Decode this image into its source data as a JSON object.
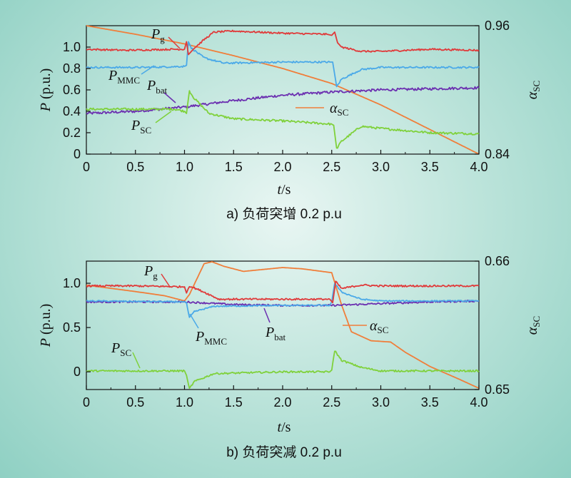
{
  "chart_data": [
    {
      "type": "line",
      "caption": "a) 负荷突增 0.2 p.u",
      "xlabel_main": "t",
      "xlabel_unit": "/s",
      "ylabel_main": "P",
      "ylabel_unit": " (p.u.)",
      "y2label_main": "α",
      "y2label_sub": "SC",
      "xlim": [
        0,
        4
      ],
      "ylim": [
        0,
        1.2
      ],
      "y2lim": [
        0.84,
        0.96
      ],
      "xticks": [
        "0",
        "0.5",
        "1.0",
        "1.5",
        "2.0",
        "2.5",
        "3.0",
        "3.5",
        "4.0"
      ],
      "yticks": [
        "0",
        "0.2",
        "0.4",
        "0.6",
        "0.8",
        "1.0"
      ],
      "y2ticks": [
        "0.84",
        "0.96"
      ],
      "series": [
        {
          "key": "pg",
          "main": "P",
          "sub": "g",
          "color": "#e03a3a",
          "axis": "left",
          "noise": 0.008,
          "points": [
            [
              0,
              0.98
            ],
            [
              0.4,
              0.97
            ],
            [
              0.9,
              0.98
            ],
            [
              1.0,
              0.98
            ],
            [
              1.02,
              1.05
            ],
            [
              1.04,
              0.93
            ],
            [
              1.06,
              0.95
            ],
            [
              1.1,
              0.99
            ],
            [
              1.2,
              1.07
            ],
            [
              1.3,
              1.14
            ],
            [
              1.5,
              1.15
            ],
            [
              2.0,
              1.13
            ],
            [
              2.45,
              1.12
            ],
            [
              2.5,
              1.11
            ],
            [
              2.53,
              1.14
            ],
            [
              2.56,
              1.04
            ],
            [
              2.6,
              1.0
            ],
            [
              2.8,
              0.96
            ],
            [
              3.0,
              0.96
            ],
            [
              3.5,
              0.98
            ],
            [
              4.0,
              0.97
            ]
          ]
        },
        {
          "key": "pmmc",
          "main": "P",
          "sub": "MMC",
          "color": "#4aa9e8",
          "axis": "left",
          "noise": 0.008,
          "points": [
            [
              0,
              0.81
            ],
            [
              0.6,
              0.81
            ],
            [
              1.0,
              0.82
            ],
            [
              1.02,
              0.83
            ],
            [
              1.04,
              1.05
            ],
            [
              1.07,
              0.99
            ],
            [
              1.2,
              0.9
            ],
            [
              1.4,
              0.85
            ],
            [
              2.0,
              0.86
            ],
            [
              2.48,
              0.86
            ],
            [
              2.51,
              0.86
            ],
            [
              2.55,
              0.63
            ],
            [
              2.6,
              0.7
            ],
            [
              2.8,
              0.79
            ],
            [
              3.0,
              0.81
            ],
            [
              4.0,
              0.81
            ]
          ]
        },
        {
          "key": "pbat",
          "main": "P",
          "sub": "bat",
          "color": "#6b2fb0",
          "axis": "left",
          "noise": 0.012,
          "points": [
            [
              0,
              0.38
            ],
            [
              0.5,
              0.4
            ],
            [
              1.0,
              0.44
            ],
            [
              1.5,
              0.5
            ],
            [
              2.0,
              0.55
            ],
            [
              2.5,
              0.58
            ],
            [
              3.0,
              0.6
            ],
            [
              3.5,
              0.61
            ],
            [
              4.0,
              0.62
            ]
          ]
        },
        {
          "key": "psc",
          "main": "P",
          "sub": "SC",
          "color": "#7fd13b",
          "axis": "left",
          "noise": 0.01,
          "points": [
            [
              0,
              0.42
            ],
            [
              0.5,
              0.42
            ],
            [
              0.9,
              0.42
            ],
            [
              1.0,
              0.4
            ],
            [
              1.02,
              0.38
            ],
            [
              1.05,
              0.59
            ],
            [
              1.1,
              0.52
            ],
            [
              1.25,
              0.38
            ],
            [
              1.5,
              0.33
            ],
            [
              2.0,
              0.31
            ],
            [
              2.5,
              0.28
            ],
            [
              2.52,
              0.27
            ],
            [
              2.55,
              0.05
            ],
            [
              2.6,
              0.12
            ],
            [
              2.8,
              0.26
            ],
            [
              3.0,
              0.24
            ],
            [
              3.5,
              0.2
            ],
            [
              4.0,
              0.19
            ]
          ]
        },
        {
          "key": "asc",
          "main": "α",
          "sub": "SC",
          "color": "#f07e3a",
          "axis": "right",
          "noise": 0,
          "points": [
            [
              0,
              0.96
            ],
            [
              0.5,
              0.952
            ],
            [
              1.0,
              0.943
            ],
            [
              1.5,
              0.932
            ],
            [
              2.0,
              0.92
            ],
            [
              2.5,
              0.906
            ],
            [
              3.0,
              0.886
            ],
            [
              3.5,
              0.863
            ],
            [
              4.0,
              0.84
            ]
          ]
        }
      ]
    },
    {
      "type": "line",
      "caption": "b) 负荷突减 0.2 p.u",
      "xlabel_main": "t",
      "xlabel_unit": "/s",
      "ylabel_main": "P",
      "ylabel_unit": " (p.u.)",
      "y2label_main": "α",
      "y2label_sub": "SC",
      "xlim": [
        0,
        4
      ],
      "ylim": [
        -0.2,
        1.25
      ],
      "y2lim": [
        0.65,
        0.66
      ],
      "xticks": [
        "0",
        "0.5",
        "1.0",
        "1.5",
        "2.0",
        "2.5",
        "3.0",
        "3.5",
        "4.0"
      ],
      "yticks": [
        "0",
        "0.5",
        "1.0"
      ],
      "y2ticks": [
        "0.65",
        "0.66"
      ],
      "series": [
        {
          "key": "pg",
          "main": "P",
          "sub": "g",
          "color": "#e03a3a",
          "axis": "left",
          "noise": 0.008,
          "points": [
            [
              0,
              0.97
            ],
            [
              0.5,
              0.97
            ],
            [
              1.0,
              0.96
            ],
            [
              1.02,
              0.89
            ],
            [
              1.05,
              0.97
            ],
            [
              1.2,
              0.9
            ],
            [
              1.35,
              0.82
            ],
            [
              1.6,
              0.82
            ],
            [
              2.0,
              0.82
            ],
            [
              2.48,
              0.82
            ],
            [
              2.51,
              0.78
            ],
            [
              2.54,
              1.02
            ],
            [
              2.6,
              0.94
            ],
            [
              2.8,
              0.98
            ],
            [
              3.0,
              0.97
            ],
            [
              4.0,
              0.97
            ]
          ]
        },
        {
          "key": "pmmc",
          "main": "P",
          "sub": "MMC",
          "color": "#4aa9e8",
          "axis": "left",
          "noise": 0.006,
          "points": [
            [
              0,
              0.8
            ],
            [
              1.0,
              0.79
            ],
            [
              1.02,
              0.78
            ],
            [
              1.05,
              0.61
            ],
            [
              1.1,
              0.68
            ],
            [
              1.3,
              0.74
            ],
            [
              2.0,
              0.75
            ],
            [
              2.48,
              0.75
            ],
            [
              2.5,
              0.79
            ],
            [
              2.53,
              1.0
            ],
            [
              2.6,
              0.9
            ],
            [
              2.8,
              0.82
            ],
            [
              3.0,
              0.8
            ],
            [
              4.0,
              0.8
            ]
          ]
        },
        {
          "key": "pbat",
          "main": "P",
          "sub": "bat",
          "color": "#6b2fb0",
          "axis": "left",
          "noise": 0.008,
          "points": [
            [
              0,
              0.79
            ],
            [
              1.0,
              0.79
            ],
            [
              1.5,
              0.76
            ],
            [
              2.0,
              0.75
            ],
            [
              2.5,
              0.75
            ],
            [
              3.0,
              0.77
            ],
            [
              3.5,
              0.79
            ],
            [
              4.0,
              0.8
            ]
          ]
        },
        {
          "key": "psc",
          "main": "P",
          "sub": "SC",
          "color": "#7fd13b",
          "axis": "left",
          "noise": 0.008,
          "points": [
            [
              0,
              0.01
            ],
            [
              0.9,
              0.01
            ],
            [
              1.0,
              0.01
            ],
            [
              1.02,
              -0.04
            ],
            [
              1.05,
              -0.19
            ],
            [
              1.1,
              -0.11
            ],
            [
              1.3,
              -0.02
            ],
            [
              2.0,
              0.0
            ],
            [
              2.48,
              0.0
            ],
            [
              2.5,
              0.02
            ],
            [
              2.53,
              0.24
            ],
            [
              2.6,
              0.13
            ],
            [
              2.8,
              0.05
            ],
            [
              3.0,
              0.01
            ],
            [
              4.0,
              0.01
            ]
          ]
        },
        {
          "key": "asc",
          "main": "α",
          "sub": "SC",
          "color": "#f07e3a",
          "axis": "right",
          "noise": 0,
          "points": [
            [
              0,
              0.65813
            ],
            [
              0.5,
              0.65763
            ],
            [
              0.8,
              0.6573
            ],
            [
              1.0,
              0.6569
            ],
            [
              1.05,
              0.6574
            ],
            [
              1.2,
              0.6598
            ],
            [
              1.28,
              0.65995
            ],
            [
              1.4,
              0.6596
            ],
            [
              1.6,
              0.6592
            ],
            [
              2.0,
              0.6595
            ],
            [
              2.2,
              0.6594
            ],
            [
              2.5,
              0.6591
            ],
            [
              2.6,
              0.6566
            ],
            [
              2.7,
              0.6545
            ],
            [
              2.9,
              0.6538
            ],
            [
              3.1,
              0.6537
            ],
            [
              3.25,
              0.6529
            ],
            [
              3.5,
              0.6518
            ],
            [
              3.8,
              0.6508
            ],
            [
              4.0,
              0.6501
            ]
          ]
        }
      ]
    }
  ]
}
